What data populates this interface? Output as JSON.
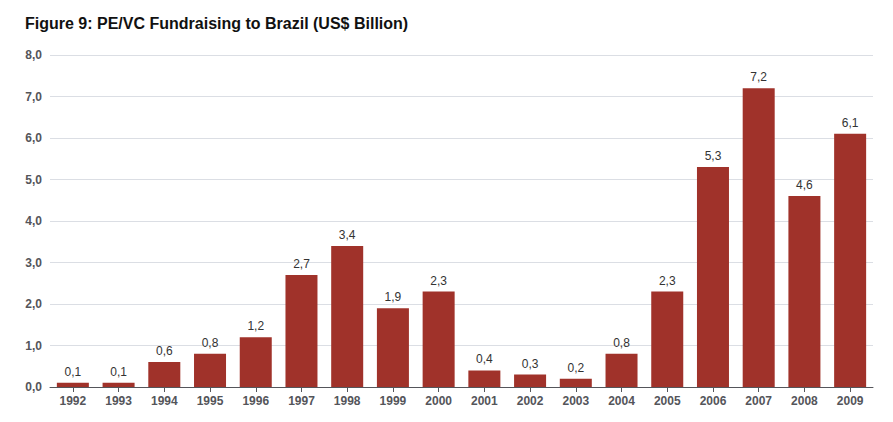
{
  "chart_data": {
    "type": "bar",
    "title": "Figure 9: PE/VC Fundraising to Brazil (US$ Billion)",
    "categories": [
      "1992",
      "1993",
      "1994",
      "1995",
      "1996",
      "1997",
      "1998",
      "1999",
      "2000",
      "2001",
      "2002",
      "2003",
      "2004",
      "2005",
      "2006",
      "2007",
      "2008",
      "2009"
    ],
    "values": [
      0.1,
      0.1,
      0.6,
      0.8,
      1.2,
      2.7,
      3.4,
      1.9,
      2.3,
      0.4,
      0.3,
      0.2,
      0.8,
      2.3,
      5.3,
      7.2,
      4.6,
      6.1
    ],
    "value_labels": [
      "0,1",
      "0,1",
      "0,6",
      "0,8",
      "1,2",
      "2,7",
      "3,4",
      "1,9",
      "2,3",
      "0,4",
      "0,3",
      "0,2",
      "0,8",
      "2,3",
      "5,3",
      "7,2",
      "4,6",
      "6,1"
    ],
    "data_labels": true,
    "color": "#A0322A",
    "ylim": [
      0,
      8.0
    ],
    "yticks": [
      {
        "value": 0.0,
        "label": "0,0"
      },
      {
        "value": 1.0,
        "label": "1,0"
      },
      {
        "value": 2.0,
        "label": "2,0"
      },
      {
        "value": 3.0,
        "label": "3,0"
      },
      {
        "value": 4.0,
        "label": "4,0"
      },
      {
        "value": 5.0,
        "label": "5,0"
      },
      {
        "value": 6.0,
        "label": "6,0"
      },
      {
        "value": 7.0,
        "label": "7,0"
      },
      {
        "value": 8.0,
        "label": "8,0"
      }
    ],
    "grid": true
  }
}
